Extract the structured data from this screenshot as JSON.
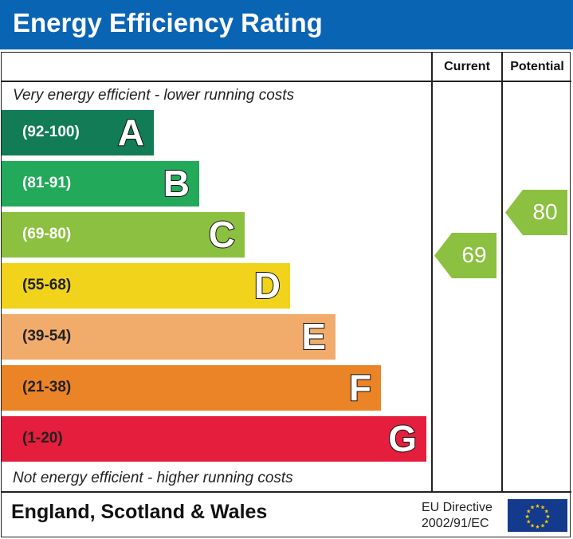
{
  "title": "Energy Efficiency Rating",
  "columns": {
    "current": "Current",
    "potential": "Potential"
  },
  "top_note": "Very energy efficient - lower running costs",
  "bottom_note": "Not energy efficient - higher running costs",
  "footer": {
    "region": "England, Scotland & Wales",
    "directive_line1": "EU Directive",
    "directive_line2": "2002/91/EC",
    "flag_icon": "eu-flag-icon"
  },
  "colors": {
    "header": "#0a64b4"
  },
  "chart_data": {
    "type": "bar",
    "bands": [
      {
        "letter": "A",
        "range": "(92-100)",
        "color": "#117c55"
      },
      {
        "letter": "B",
        "range": "(81-91)",
        "color": "#22a95a"
      },
      {
        "letter": "C",
        "range": "(69-80)",
        "color": "#8cc040"
      },
      {
        "letter": "D",
        "range": "(55-68)",
        "color": "#f0d31a"
      },
      {
        "letter": "E",
        "range": "(39-54)",
        "color": "#f1ac6c"
      },
      {
        "letter": "F",
        "range": "(21-38)",
        "color": "#eb8426"
      },
      {
        "letter": "G",
        "range": "(1-20)",
        "color": "#e41e3c"
      }
    ],
    "current": {
      "value": "69",
      "color": "#8cc040"
    },
    "potential": {
      "value": "80",
      "color": "#8cc040"
    }
  }
}
